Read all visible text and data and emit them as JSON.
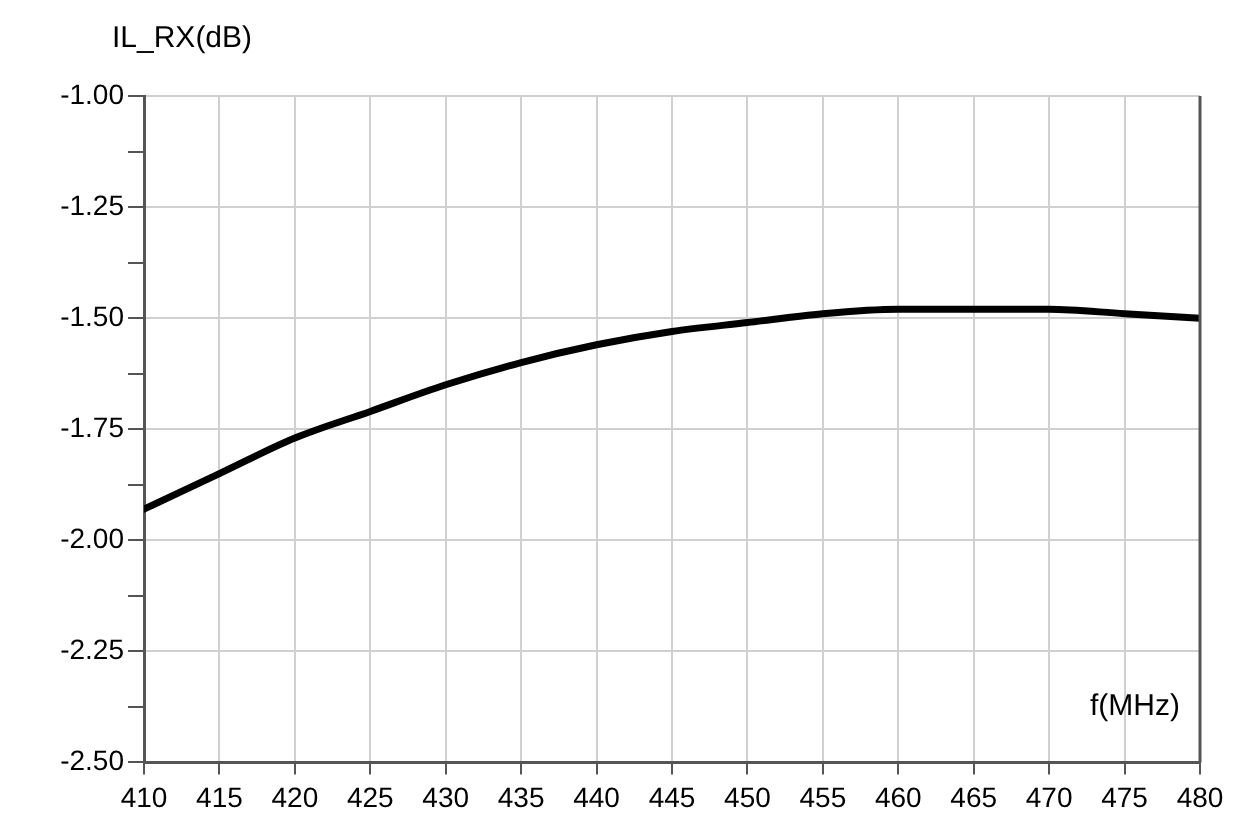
{
  "chart_data": {
    "type": "line",
    "ylabel": "IL_RX(dB)",
    "xlabel": "f(MHz)",
    "x": [
      410,
      415,
      420,
      425,
      430,
      435,
      440,
      445,
      450,
      455,
      460,
      465,
      470,
      475,
      480
    ],
    "series": [
      {
        "color": "#000000",
        "values": [
          -1.93,
          -1.85,
          -1.77,
          -1.71,
          -1.65,
          -1.6,
          -1.56,
          -1.53,
          -1.51,
          -1.49,
          -1.48,
          -1.48,
          -1.48,
          -1.49,
          -1.5
        ]
      }
    ],
    "xlim": [
      410,
      480
    ],
    "xticks": [
      410,
      415,
      420,
      425,
      430,
      435,
      440,
      445,
      450,
      455,
      460,
      465,
      470,
      475,
      480
    ],
    "ylim": [
      -2.5,
      -1.0
    ],
    "yticks": [
      {
        "value": -2.5,
        "label": "-2.50"
      },
      {
        "value": -2.375,
        "label": null
      },
      {
        "value": -2.25,
        "label": "-2.25"
      },
      {
        "value": -2.125,
        "label": null
      },
      {
        "value": -2.0,
        "label": "-2.00"
      },
      {
        "value": -1.875,
        "label": null
      },
      {
        "value": -1.75,
        "label": "-1.75"
      },
      {
        "value": -1.625,
        "label": null
      },
      {
        "value": -1.5,
        "label": "-1.50"
      },
      {
        "value": -1.375,
        "label": null
      },
      {
        "value": -1.25,
        "label": "-1.25"
      },
      {
        "value": -1.125,
        "label": null
      },
      {
        "value": -1.0,
        "label": "-1.00"
      }
    ],
    "grid": true,
    "legend": false,
    "marker": "none",
    "line_style": "solid"
  }
}
